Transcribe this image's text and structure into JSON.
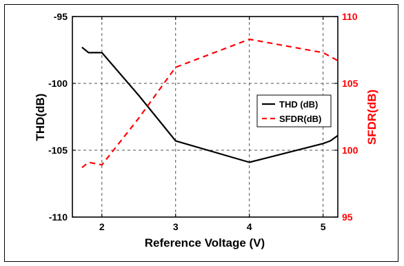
{
  "chart_data": {
    "type": "line",
    "xlabel": "Reference Voltage (V)",
    "ylabel_left": "THD(dB)",
    "ylabel_right": "SFDR(dB)",
    "xlim": [
      1.6,
      5.2
    ],
    "ylim_left": [
      -110,
      -95
    ],
    "ylim_right": [
      95,
      110
    ],
    "xticks": [
      2,
      3,
      4,
      5
    ],
    "yticks_left": [
      -110,
      -105,
      -100,
      -95
    ],
    "yticks_right": [
      95,
      100,
      105,
      110
    ],
    "grid": true,
    "legend_position": "right",
    "series": [
      {
        "name": "THD (dB)",
        "axis": "left",
        "color": "#000000",
        "style": "solid",
        "x": [
          1.73,
          1.82,
          2.0,
          2.5,
          3.0,
          4.0,
          5.0,
          5.1,
          5.2
        ],
        "y": [
          -97.3,
          -97.7,
          -97.7,
          -100.9,
          -104.3,
          -105.9,
          -104.5,
          -104.3,
          -103.9
        ]
      },
      {
        "name": "SFDR(dB)",
        "axis": "right",
        "color": "#ff0000",
        "style": "dashed",
        "x": [
          1.73,
          1.82,
          2.0,
          2.5,
          3.0,
          4.0,
          5.0,
          5.2
        ],
        "y": [
          98.7,
          99.1,
          98.9,
          102.4,
          106.2,
          108.3,
          107.3,
          106.7
        ]
      }
    ]
  },
  "colors": {
    "left_axis": "#000000",
    "right_axis": "#ff0000",
    "grid": "#4d4d4d"
  }
}
